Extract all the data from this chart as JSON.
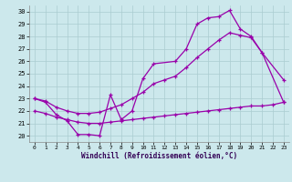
{
  "xlabel": "Windchill (Refroidissement éolien,°C)",
  "background_color": "#cce8ec",
  "grid_color": "#aaccd0",
  "line_color": "#9900aa",
  "x_ticks": [
    0,
    1,
    2,
    3,
    4,
    5,
    6,
    7,
    8,
    9,
    10,
    11,
    12,
    13,
    14,
    15,
    16,
    17,
    18,
    19,
    20,
    21,
    22,
    23
  ],
  "y_ticks": [
    20,
    21,
    22,
    23,
    24,
    25,
    26,
    27,
    28,
    29,
    30
  ],
  "ylim": [
    19.5,
    30.5
  ],
  "xlim": [
    -0.5,
    23.5
  ],
  "series_upper_x": [
    0,
    1,
    2,
    3,
    4,
    5,
    6,
    7,
    8,
    9,
    10,
    11,
    13,
    14,
    15,
    16,
    17,
    18,
    19,
    20,
    21,
    23
  ],
  "series_upper_y": [
    23.0,
    22.7,
    21.7,
    21.2,
    20.1,
    20.1,
    20.0,
    23.3,
    21.3,
    22.0,
    24.6,
    25.8,
    26.0,
    27.0,
    29.0,
    29.5,
    29.6,
    30.1,
    28.6,
    28.0,
    26.7,
    24.5
  ],
  "series_middle_x": [
    0,
    1,
    2,
    3,
    4,
    5,
    6,
    7,
    8,
    9,
    10,
    11,
    12,
    13,
    14,
    15,
    16,
    17,
    18,
    19,
    20,
    21,
    23
  ],
  "series_middle_y": [
    23.0,
    22.8,
    22.3,
    22.0,
    21.8,
    21.8,
    21.9,
    22.2,
    22.5,
    23.0,
    23.5,
    24.2,
    24.5,
    24.8,
    25.5,
    26.3,
    27.0,
    27.7,
    28.3,
    28.1,
    27.9,
    26.7,
    22.7
  ],
  "series_lower_x": [
    0,
    1,
    2,
    3,
    4,
    5,
    6,
    7,
    8,
    9,
    10,
    11,
    12,
    13,
    14,
    15,
    16,
    17,
    18,
    19,
    20,
    21,
    22,
    23
  ],
  "series_lower_y": [
    22.0,
    21.8,
    21.5,
    21.3,
    21.1,
    21.0,
    21.0,
    21.1,
    21.2,
    21.3,
    21.4,
    21.5,
    21.6,
    21.7,
    21.8,
    21.9,
    22.0,
    22.1,
    22.2,
    22.3,
    22.4,
    22.4,
    22.5,
    22.7
  ]
}
